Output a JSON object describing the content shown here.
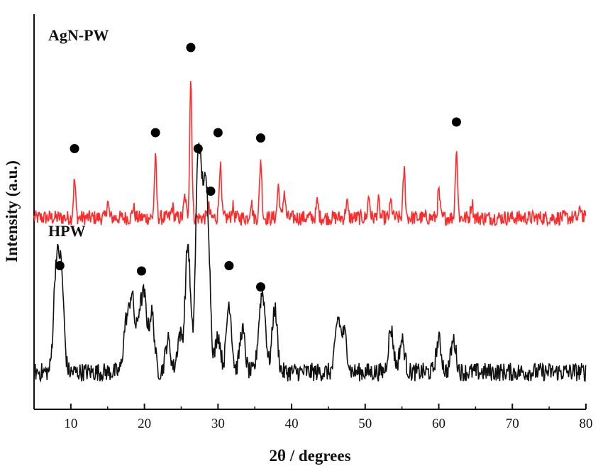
{
  "chart_data": {
    "type": "line",
    "xlabel": "2θ /  degrees",
    "ylabel": "Intensity (a.u.)",
    "xlim": [
      5,
      80
    ],
    "x_ticks": [
      10,
      20,
      30,
      40,
      50,
      60,
      70,
      80
    ],
    "y_ticks_shown": false,
    "grid": false,
    "legend": "none",
    "series": [
      {
        "name": "AgN-PW",
        "color": "#ff2a2a",
        "baseline": 3.6,
        "peaks": [
          {
            "x": 10.5,
            "y": 4.3
          },
          {
            "x": 15.0,
            "y": 3.9
          },
          {
            "x": 18.5,
            "y": 3.8
          },
          {
            "x": 21.5,
            "y": 4.7
          },
          {
            "x": 23.8,
            "y": 3.8
          },
          {
            "x": 25.5,
            "y": 4.0
          },
          {
            "x": 26.3,
            "y": 6.2
          },
          {
            "x": 28.7,
            "y": 3.8
          },
          {
            "x": 30.3,
            "y": 4.6
          },
          {
            "x": 32.0,
            "y": 3.8
          },
          {
            "x": 34.5,
            "y": 3.9
          },
          {
            "x": 35.8,
            "y": 4.7
          },
          {
            "x": 38.2,
            "y": 4.2
          },
          {
            "x": 39.0,
            "y": 4.1
          },
          {
            "x": 43.5,
            "y": 3.9
          },
          {
            "x": 47.5,
            "y": 3.9
          },
          {
            "x": 50.5,
            "y": 4.0
          },
          {
            "x": 51.8,
            "y": 3.9
          },
          {
            "x": 53.5,
            "y": 3.9
          },
          {
            "x": 55.3,
            "y": 4.5
          },
          {
            "x": 60.0,
            "y": 4.1
          },
          {
            "x": 62.4,
            "y": 4.9
          },
          {
            "x": 64.5,
            "y": 3.9
          },
          {
            "x": 79.3,
            "y": 3.8
          }
        ],
        "markers": [
          {
            "x": 10.5,
            "y": 4.9
          },
          {
            "x": 21.5,
            "y": 5.2
          },
          {
            "x": 26.3,
            "y": 6.8
          },
          {
            "x": 30.0,
            "y": 5.2
          },
          {
            "x": 35.8,
            "y": 5.1
          },
          {
            "x": 62.4,
            "y": 5.4
          }
        ]
      },
      {
        "name": "HPW",
        "color": "#111111",
        "baseline": 0.7,
        "peaks": [
          {
            "x": 8.0,
            "y": 2.6
          },
          {
            "x": 8.7,
            "y": 2.5
          },
          {
            "x": 17.5,
            "y": 1.6
          },
          {
            "x": 18.3,
            "y": 2.1
          },
          {
            "x": 19.3,
            "y": 1.7
          },
          {
            "x": 20.0,
            "y": 2.0
          },
          {
            "x": 21.0,
            "y": 1.8
          },
          {
            "x": 23.2,
            "y": 1.3
          },
          {
            "x": 24.8,
            "y": 1.4
          },
          {
            "x": 25.9,
            "y": 3.1
          },
          {
            "x": 27.3,
            "y": 4.6
          },
          {
            "x": 28.0,
            "y": 3.2
          },
          {
            "x": 28.6,
            "y": 3.3
          },
          {
            "x": 30.0,
            "y": 1.4
          },
          {
            "x": 31.5,
            "y": 2.0
          },
          {
            "x": 33.3,
            "y": 1.5
          },
          {
            "x": 35.7,
            "y": 1.5
          },
          {
            "x": 36.2,
            "y": 1.8
          },
          {
            "x": 37.7,
            "y": 1.9
          },
          {
            "x": 46.3,
            "y": 1.7
          },
          {
            "x": 47.2,
            "y": 1.4
          },
          {
            "x": 53.5,
            "y": 1.5
          },
          {
            "x": 55.0,
            "y": 1.3
          },
          {
            "x": 60.0,
            "y": 1.3
          },
          {
            "x": 62.0,
            "y": 1.3
          }
        ],
        "markers": [
          {
            "x": 8.5,
            "y": 2.7
          },
          {
            "x": 19.6,
            "y": 2.6
          },
          {
            "x": 27.3,
            "y": 4.9
          },
          {
            "x": 29.0,
            "y": 4.1
          },
          {
            "x": 31.5,
            "y": 2.7
          },
          {
            "x": 35.8,
            "y": 2.3
          }
        ]
      }
    ]
  }
}
